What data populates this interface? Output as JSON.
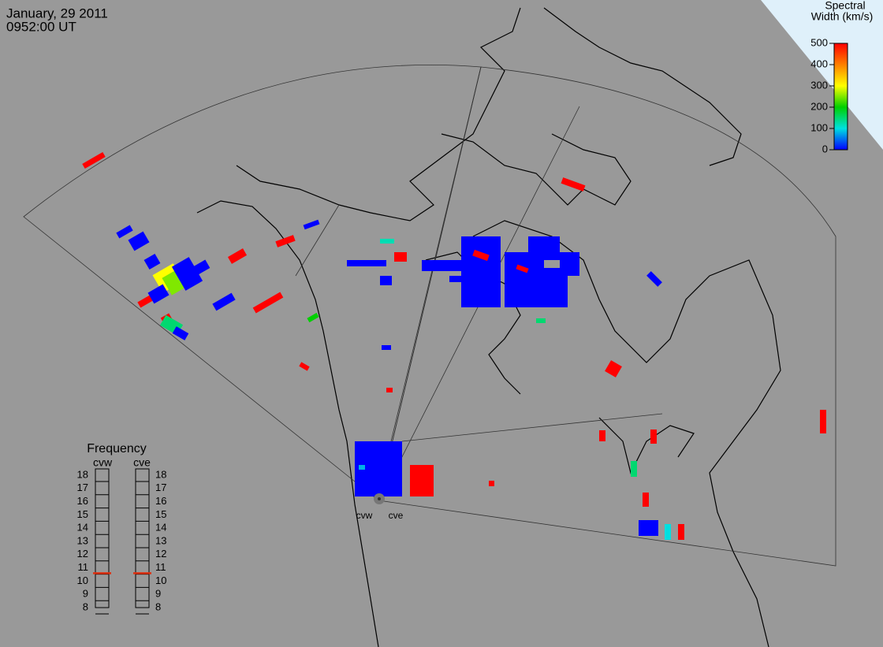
{
  "header": {
    "date": "January, 29 2011",
    "time": "0952:00 UT"
  },
  "colorbar": {
    "title_line1": "Spectral",
    "title_line2": "Width (km/s)",
    "lim": [
      0,
      500
    ],
    "ticks": [
      0,
      100,
      200,
      300,
      400,
      500
    ]
  },
  "frequency": {
    "title": "Frequency",
    "lim": [
      8,
      18
    ],
    "ticks": [
      8,
      9,
      10,
      11,
      12,
      13,
      14,
      15,
      16,
      17,
      18
    ],
    "radars": [
      {
        "name": "cvw",
        "value": 10.6
      },
      {
        "name": "cve",
        "value": 10.6
      }
    ]
  },
  "sites": [
    "cvw",
    "cve"
  ],
  "echoes": [
    500,
    0,
    0,
    0,
    300,
    250,
    0,
    0,
    500,
    0,
    500,
    150,
    0,
    0,
    500,
    500,
    0,
    500,
    200,
    500,
    0,
    120,
    0,
    500,
    0,
    0,
    0,
    500,
    0,
    500,
    0,
    0,
    0,
    150,
    500,
    0,
    500,
    0,
    100,
    500,
    500,
    500,
    150,
    500,
    500,
    0,
    500,
    80,
    500,
    0,
    500
  ]
}
